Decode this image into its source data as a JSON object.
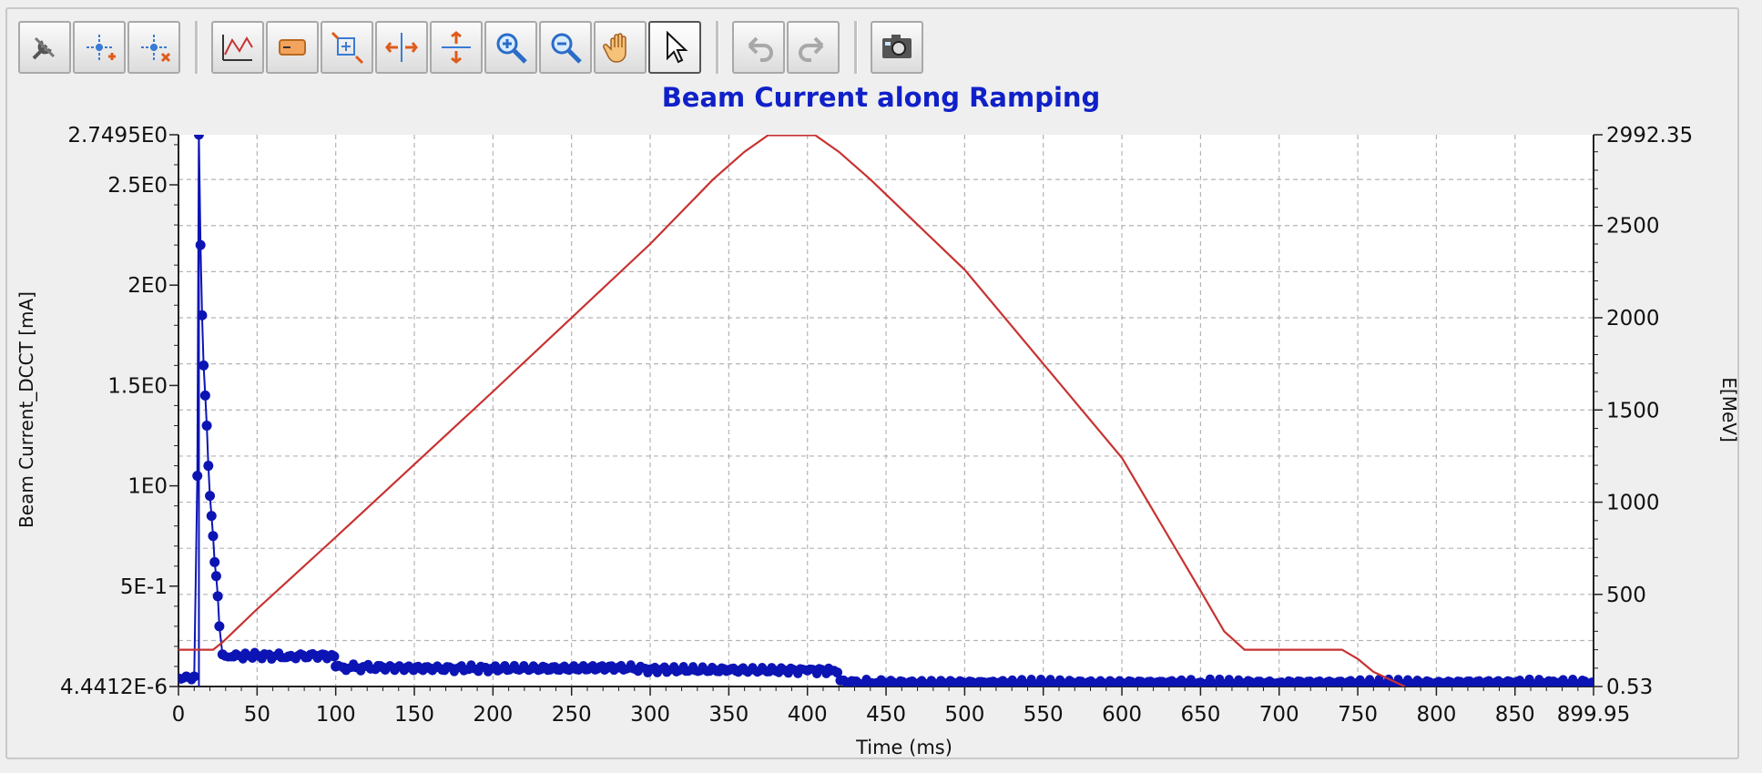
{
  "toolbar": {
    "buttons": [
      {
        "name": "settings-tools-icon"
      },
      {
        "name": "add-marker-icon"
      },
      {
        "name": "remove-marker-icon"
      },
      {
        "sep": true
      },
      {
        "name": "plot-options-icon"
      },
      {
        "name": "legend-toggle-icon"
      },
      {
        "name": "zoom-box-icon"
      },
      {
        "name": "zoom-horizontal-icon"
      },
      {
        "name": "zoom-vertical-icon"
      },
      {
        "name": "zoom-in-icon"
      },
      {
        "name": "zoom-out-icon"
      },
      {
        "name": "pan-hand-icon"
      },
      {
        "name": "select-pointer-icon",
        "active": true
      },
      {
        "sep": true
      },
      {
        "name": "undo-icon",
        "disabled": true
      },
      {
        "name": "redo-icon",
        "disabled": true
      },
      {
        "sep": true
      },
      {
        "name": "snapshot-camera-icon"
      }
    ]
  },
  "colors": {
    "beam_current": "#0c14b4",
    "energy": "#c83232",
    "title": "#1020c8",
    "grid": "#b4b4b4"
  },
  "chart_data": {
    "type": "line",
    "title": "Beam Current along Ramping",
    "xlabel": "Time (ms)",
    "ylabel": "Beam Current_DCCT [mA]",
    "y2label": "E[MeV]",
    "xlim": [
      0,
      899.95
    ],
    "ylim": [
      4.4412e-06,
      2.7495
    ],
    "y2lim": [
      0.53,
      2992.35
    ],
    "x_ticks": [
      0,
      50,
      100,
      150,
      200,
      250,
      300,
      350,
      400,
      450,
      500,
      550,
      600,
      650,
      700,
      750,
      800,
      850,
      899.95
    ],
    "x_tick_labels": [
      "0",
      "50",
      "100",
      "150",
      "200",
      "250",
      "300",
      "350",
      "400",
      "450",
      "500",
      "550",
      "600",
      "650",
      "700",
      "750",
      "800",
      "850",
      "899.95"
    ],
    "y_ticks": [
      4.4412e-06,
      0.5,
      1.0,
      1.5,
      2.0,
      2.5,
      2.7495
    ],
    "y_tick_labels": [
      "4.4412E-6",
      "5E-1",
      "1E0",
      "1.5E0",
      "2E0",
      "2.5E0",
      "2.7495E0"
    ],
    "y2_ticks": [
      0.53,
      500,
      1000,
      1500,
      2000,
      2500,
      2992.35
    ],
    "y2_tick_labels": [
      "0.53",
      "500",
      "1000",
      "1500",
      "2000",
      "2500",
      "2992.35"
    ],
    "grid": true,
    "series": [
      {
        "axis": "left",
        "style": "markers",
        "x": [
          0,
          5,
          10,
          12,
          13,
          14,
          15,
          16,
          17,
          18,
          19,
          20,
          21,
          22,
          23,
          24,
          25,
          26,
          28,
          35,
          50,
          70,
          90,
          99,
          100,
          105,
          130,
          160,
          200,
          250,
          280,
          300,
          350,
          400,
          415,
          419,
          421,
          425,
          450,
          500,
          550,
          600,
          650,
          700,
          750,
          800,
          850,
          899
        ],
        "y": [
          0.04,
          0.05,
          0.05,
          1.05,
          2.75,
          2.2,
          1.85,
          1.6,
          1.45,
          1.3,
          1.1,
          0.95,
          0.85,
          0.75,
          0.62,
          0.55,
          0.45,
          0.3,
          0.16,
          0.15,
          0.155,
          0.15,
          0.155,
          0.15,
          0.1,
          0.095,
          0.095,
          0.09,
          0.09,
          0.09,
          0.095,
          0.085,
          0.082,
          0.08,
          0.08,
          0.07,
          0.03,
          0.02,
          0.018,
          0.018,
          0.019,
          0.018,
          0.02,
          0.018,
          0.019,
          0.018,
          0.02,
          0.02
        ]
      },
      {
        "axis": "right",
        "style": "line",
        "x": [
          0,
          18,
          22,
          28,
          50,
          100,
          200,
          300,
          340,
          360,
          375,
          405,
          420,
          440,
          500,
          600,
          650,
          665,
          678,
          740,
          750,
          760,
          780
        ],
        "y": [
          200,
          200,
          200,
          240,
          420,
          810,
          1600,
          2400,
          2750,
          2900,
          2990,
          2990,
          2900,
          2750,
          2260,
          1240,
          520,
          300,
          200,
          200,
          150,
          80,
          0
        ]
      }
    ]
  }
}
